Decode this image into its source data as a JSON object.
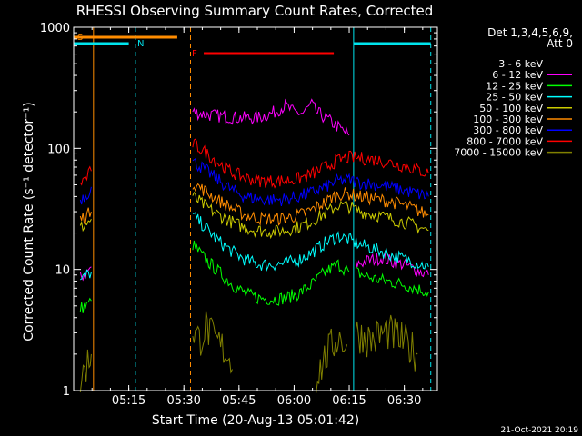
{
  "chart_data": {
    "type": "line",
    "title": "RHESSI Observing Summary Count Rates, Corrected",
    "xlabel": "Start Time (20-Aug-13 05:01:42)",
    "ylabel": "Corrected Count Rate (s⁻¹ detector⁻¹)",
    "yscale": "log",
    "ylim": [
      1,
      1000
    ],
    "xlim": [
      5.0,
      6.65
    ],
    "xticks": [
      {
        "t": 5.25,
        "label": "05:15"
      },
      {
        "t": 5.5,
        "label": "05:30"
      },
      {
        "t": 5.75,
        "label": "05:45"
      },
      {
        "t": 6.0,
        "label": "06:00"
      },
      {
        "t": 6.25,
        "label": "06:15"
      },
      {
        "t": 6.5,
        "label": "06:30"
      }
    ],
    "yticks": [
      {
        "v": 1,
        "label": "1"
      },
      {
        "v": 10,
        "label": "10"
      },
      {
        "v": 100,
        "label": "100"
      },
      {
        "v": 1000,
        "label": "1000"
      }
    ],
    "legend_title": "Det 1,3,4,5,6,9,",
    "legend_subtitle": "Att 0",
    "legend_position": "top-right",
    "series": [
      {
        "name": "3 - 6 keV",
        "color": "#000000",
        "segments": [
          {
            "t": [
              5.03,
              5.06,
              5.07,
              5.08
            ],
            "v": [
              2.3,
              2.6,
              3.0,
              3.3
            ]
          },
          {
            "t": [
              5.54,
              5.6,
              5.66,
              5.72,
              5.78,
              5.84,
              5.9,
              5.96,
              6.0,
              6.04,
              6.08,
              6.1,
              6.15,
              6.2,
              6.25
            ],
            "v": [
              195,
              185,
              180,
              175,
              172,
              175,
              185,
              205,
              195,
              190,
              210,
              190,
              165,
              140,
              122
            ]
          },
          {
            "t": [
              6.28,
              6.35,
              6.4,
              6.45,
              6.5,
              6.55,
              6.61
            ],
            "v": [
              6.0,
              5.6,
              5.5,
              5.3,
              4.7,
              3.5,
              2.9
            ]
          }
        ]
      },
      {
        "name": "6 - 12 keV",
        "color": "#ff00ff",
        "segments": [
          {
            "t": [
              5.03,
              5.06,
              5.08
            ],
            "v": [
              8.5,
              9.5,
              10.5
            ]
          },
          {
            "t": [
              5.54,
              5.6,
              5.66,
              5.72,
              5.78,
              5.84,
              5.9,
              5.96,
              6.0,
              6.04,
              6.08,
              6.1,
              6.15,
              6.2,
              6.25
            ],
            "v": [
              200,
              190,
              185,
              180,
              178,
              180,
              195,
              225,
              198,
              195,
              230,
              200,
              175,
              150,
              128
            ]
          },
          {
            "t": [
              6.28,
              6.35,
              6.4,
              6.45,
              6.5,
              6.55,
              6.61
            ],
            "v": [
              11,
              12,
              12.5,
              11.5,
              11,
              10,
              9
            ]
          }
        ]
      },
      {
        "name": "12 - 25 keV",
        "color": "#00ff00",
        "segments": [
          {
            "t": [
              5.03,
              5.06,
              5.08
            ],
            "v": [
              4.8,
              5.0,
              5.5
            ]
          },
          {
            "t": [
              5.54,
              5.6,
              5.66,
              5.72,
              5.78,
              5.84,
              5.9,
              5.96,
              6.02,
              6.08,
              6.14,
              6.2,
              6.25
            ],
            "v": [
              16,
              12,
              9.5,
              7.5,
              6.3,
              5.8,
              5.7,
              5.8,
              6.3,
              7.5,
              9.5,
              11,
              9.5
            ]
          },
          {
            "t": [
              6.28,
              6.35,
              6.42,
              6.5,
              6.55,
              6.61
            ],
            "v": [
              9.5,
              8.5,
              8.0,
              7.5,
              7.0,
              6.5
            ]
          }
        ]
      },
      {
        "name": "25 - 50 keV",
        "color": "#00ffff",
        "segments": [
          {
            "t": [
              5.03,
              5.06,
              5.08
            ],
            "v": [
              8.0,
              9.0,
              9.5
            ]
          },
          {
            "t": [
              5.54,
              5.6,
              5.66,
              5.72,
              5.78,
              5.84,
              5.9,
              5.96,
              6.02,
              6.08,
              6.14,
              6.2,
              6.25,
              6.3,
              6.38,
              6.45,
              6.52,
              6.61
            ],
            "v": [
              28,
              22,
              17,
              14,
              12,
              11,
              11,
              11.2,
              12,
              13.8,
              16.5,
              19,
              17.5,
              16,
              14.5,
              13,
              12,
              10.5
            ]
          }
        ]
      },
      {
        "name": "50 - 100 keV",
        "color": "#cccc00",
        "segments": [
          {
            "t": [
              5.03,
              5.06,
              5.08
            ],
            "v": [
              22,
              24,
              26
            ]
          },
          {
            "t": [
              5.54,
              5.6,
              5.66,
              5.72,
              5.78,
              5.84,
              5.9,
              5.96,
              6.02,
              6.08,
              6.14,
              6.2,
              6.25,
              6.3,
              6.38,
              6.45,
              6.52,
              6.61
            ],
            "v": [
              40,
              33,
              28,
              24.5,
              22,
              21,
              20.5,
              21,
              22.5,
              25,
              29,
              34,
              33,
              30,
              28,
              26,
              24,
              21
            ]
          }
        ]
      },
      {
        "name": "100 - 300 keV",
        "color": "#ff8c00",
        "segments": [
          {
            "t": [
              5.03,
              5.06,
              5.08
            ],
            "v": [
              26,
              28,
              30
            ]
          },
          {
            "t": [
              5.54,
              5.6,
              5.66,
              5.72,
              5.78,
              5.84,
              5.9,
              5.96,
              6.02,
              6.08,
              6.14,
              6.2,
              6.25,
              6.3,
              6.38,
              6.45,
              6.52,
              6.61
            ],
            "v": [
              52,
              44,
              37,
              32,
              28,
              26.5,
              26,
              26.5,
              28,
              31,
              36,
              42,
              42,
              40,
              38,
              36,
              33,
              28
            ]
          }
        ]
      },
      {
        "name": "300 - 800 keV",
        "color": "#0000ff",
        "segments": [
          {
            "t": [
              5.03,
              5.06,
              5.08
            ],
            "v": [
              38,
              42,
              48
            ]
          },
          {
            "t": [
              5.54,
              5.6,
              5.66,
              5.72,
              5.78,
              5.84,
              5.9,
              5.96,
              6.02,
              6.08,
              6.14,
              6.2,
              6.25,
              6.3,
              6.38,
              6.45,
              6.52,
              6.61
            ],
            "v": [
              78,
              66,
              54,
              45,
              40,
              38,
              37.5,
              38,
              40,
              43,
              48,
              54,
              55,
              52,
              50,
              47,
              44,
              40
            ]
          }
        ]
      },
      {
        "name": "800 - 7000 keV",
        "color": "#ff0000",
        "segments": [
          {
            "t": [
              5.03,
              5.06,
              5.08
            ],
            "v": [
              52,
              58,
              65
            ]
          },
          {
            "t": [
              5.54,
              5.6,
              5.66,
              5.72,
              5.78,
              5.84,
              5.9,
              5.96,
              6.02,
              6.08,
              6.14,
              6.2,
              6.25,
              6.3,
              6.38,
              6.45,
              6.52,
              6.61
            ],
            "v": [
              110,
              92,
              75,
              63,
              57,
              54,
              53.5,
              54,
              56,
              61,
              70,
              80,
              84,
              83,
              80,
              75,
              70,
              62
            ]
          }
        ]
      },
      {
        "name": "7000 - 15000 keV",
        "color": "#808000",
        "segments": [
          {
            "t": [
              5.03,
              5.05,
              5.07,
              5.08
            ],
            "v": [
              1.2,
              1.5,
              1.8,
              2.0
            ]
          },
          {
            "t": [
              5.54,
              5.57,
              5.6,
              5.63,
              5.66,
              5.7,
              5.72
            ],
            "v": [
              3.2,
              2.6,
              3.4,
              2.7,
              2.4,
              2.0,
              1.5
            ]
          },
          {
            "t": [
              6.1,
              6.15,
              6.2,
              6.24
            ],
            "v": [
              1.3,
              2.0,
              2.8,
              2.4
            ]
          },
          {
            "t": [
              6.28,
              6.35,
              6.42,
              6.5,
              6.56
            ],
            "v": [
              3.0,
              2.6,
              3.1,
              2.5,
              2.0
            ]
          }
        ]
      }
    ],
    "annotations": {
      "flags": [
        {
          "label": "S",
          "color": "#ff8c00",
          "t_start": 5.0,
          "t_end": 5.47
        },
        {
          "label": "N",
          "color": "#00e5ee",
          "t_start": 5.0,
          "t_end": 5.25
        },
        {
          "label": "F",
          "color": "#ff0000",
          "t_start": 5.59,
          "t_end": 6.18
        }
      ],
      "vlines": [
        {
          "t": 5.09,
          "color": "#ff8c00",
          "style": "solid"
        },
        {
          "t": 5.28,
          "color": "#00e5ee",
          "style": "dashed"
        },
        {
          "t": 5.53,
          "color": "#ff8c00",
          "style": "dashed"
        },
        {
          "t": 6.27,
          "color": "#00e5ee",
          "style": "solid"
        },
        {
          "t": 6.62,
          "color": "#00e5ee",
          "style": "dashed"
        }
      ]
    },
    "footer_timestamp": "21-Oct-2021 20:19"
  }
}
